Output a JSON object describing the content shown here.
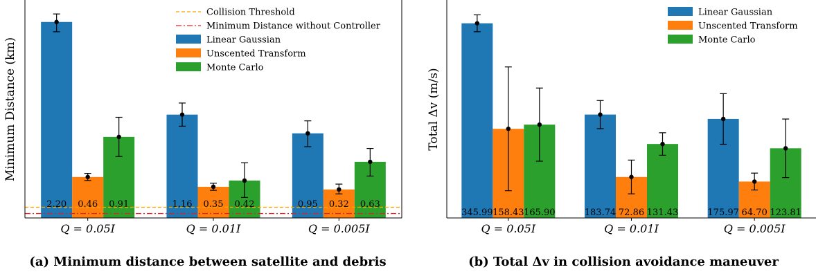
{
  "chart_data": [
    {
      "type": "bar",
      "title": "",
      "caption": "(a) Minimum distance between satellite and debris",
      "ylabel": "Minimum Distance (km)",
      "xlabel": "",
      "categories": [
        "Q = 0.05I",
        "Q = 0.01I",
        "Q = 0.005I"
      ],
      "ylim": [
        0,
        2.4
      ],
      "series": [
        {
          "name": "Linear Gaussian",
          "color": "#1f77b4",
          "values": [
            2.2,
            1.16,
            0.95
          ],
          "err_low": [
            0.11,
            0.13,
            0.15
          ],
          "err_high": [
            0.09,
            0.13,
            0.14
          ],
          "labels": [
            "2.20",
            "1.16",
            "0.95"
          ]
        },
        {
          "name": "Unscented Transform",
          "color": "#ff7f0e",
          "values": [
            0.46,
            0.35,
            0.32
          ],
          "err_low": [
            0.04,
            0.04,
            0.05
          ],
          "err_high": [
            0.04,
            0.04,
            0.06
          ],
          "labels": [
            "0.46",
            "0.35",
            "0.32"
          ]
        },
        {
          "name": "Monte Carlo",
          "color": "#2ca02c",
          "values": [
            0.91,
            0.42,
            0.63
          ],
          "err_low": [
            0.22,
            0.19,
            0.16
          ],
          "err_high": [
            0.22,
            0.2,
            0.15
          ],
          "labels": [
            "0.91",
            "0.42",
            "0.63"
          ]
        }
      ],
      "reference_lines": [
        {
          "name": "Collision Threshold",
          "value": 0.12,
          "color": "#ffa500",
          "style": "dashed"
        },
        {
          "name": "Minimum Distance without Controller",
          "value": 0.05,
          "color": "#d62728",
          "style": "dashdot"
        }
      ],
      "legend": {
        "position": "top-right",
        "entries": [
          "Collision Threshold",
          "Minimum Distance without Controller",
          "Linear Gaussian",
          "Unscented Transform",
          "Monte Carlo"
        ]
      },
      "grid": false
    },
    {
      "type": "bar",
      "title": "",
      "caption": "(b) Total Δv in collision avoidance maneuver",
      "ylabel": "Total Δv (m/s)",
      "xlabel": "",
      "categories": [
        "Q = 0.05I",
        "Q = 0.01I",
        "Q = 0.005I"
      ],
      "ylim": [
        0,
        380
      ],
      "series": [
        {
          "name": "Linear Gaussian",
          "color": "#1f77b4",
          "values": [
            345.99,
            183.74,
            175.97
          ],
          "err_low": [
            15,
            25,
            45
          ],
          "err_high": [
            15,
            25,
            45
          ],
          "labels": [
            "345.99",
            "183.74",
            "175.97"
          ]
        },
        {
          "name": "Unscented Transform",
          "color": "#ff7f0e",
          "values": [
            158.43,
            72.86,
            64.7
          ],
          "err_low": [
            110,
            30,
            15
          ],
          "err_high": [
            110,
            30,
            15
          ],
          "labels": [
            "158.43",
            "72.86",
            "64.70"
          ]
        },
        {
          "name": "Monte Carlo",
          "color": "#2ca02c",
          "values": [
            165.9,
            131.43,
            123.81
          ],
          "err_low": [
            65,
            20,
            52
          ],
          "err_high": [
            65,
            20,
            52
          ],
          "labels": [
            "165.90",
            "131.43",
            "123.81"
          ]
        }
      ],
      "legend": {
        "position": "top-right",
        "entries": [
          "Linear Gaussian",
          "Unscented Transform",
          "Monte Carlo"
        ]
      },
      "grid": false
    }
  ]
}
